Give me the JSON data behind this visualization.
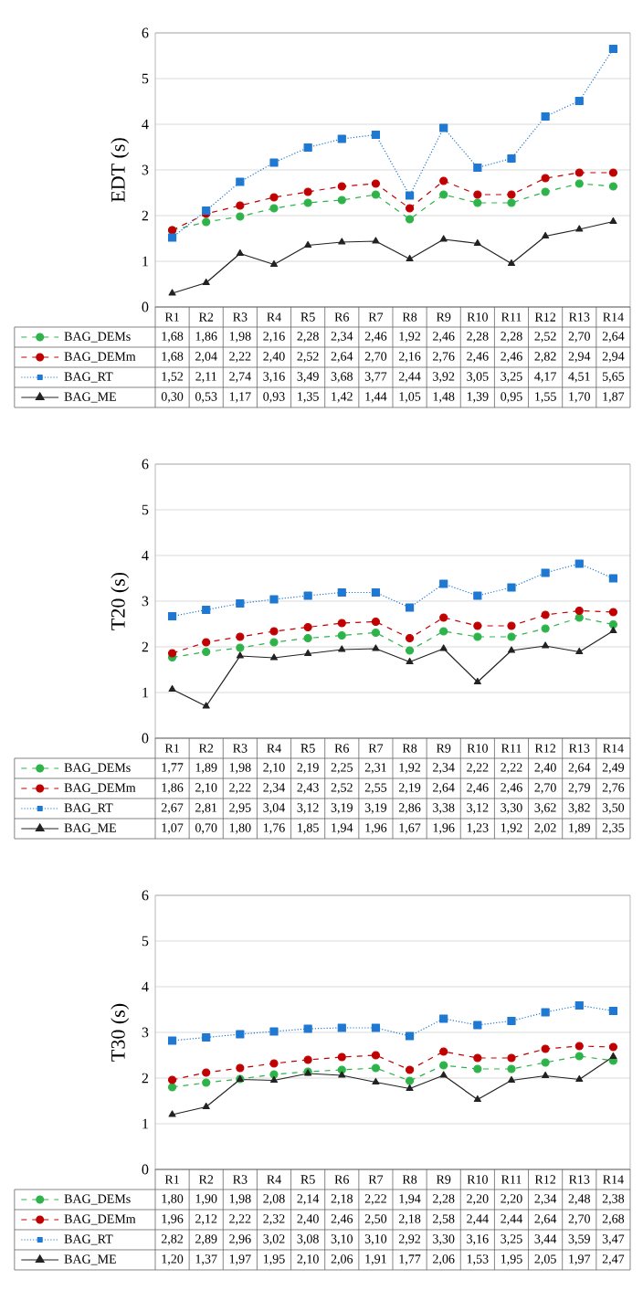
{
  "chart_data": [
    {
      "type": "line",
      "ylabel": "EDT (s)",
      "categories": [
        "R1",
        "R2",
        "R3",
        "R4",
        "R5",
        "R6",
        "R7",
        "R8",
        "R9",
        "R10",
        "R11",
        "R12",
        "R13",
        "R14"
      ],
      "ylim": [
        0,
        6
      ],
      "yticks": [
        0,
        1,
        2,
        3,
        4,
        5,
        6
      ],
      "grid": "y",
      "legend": "bottom",
      "series": [
        {
          "name": "BAG_DEMs",
          "color": "#2db34a",
          "marker": "circle",
          "line_style": "dashed",
          "values": [
            1.68,
            1.86,
            1.98,
            2.16,
            2.28,
            2.34,
            2.46,
            1.92,
            2.46,
            2.28,
            2.28,
            2.52,
            2.7,
            2.64
          ],
          "value_labels": [
            "1,68",
            "1,86",
            "1,98",
            "2,16",
            "2,28",
            "2,34",
            "2,46",
            "1,92",
            "2,46",
            "2,28",
            "2,28",
            "2,52",
            "2,70",
            "2,64"
          ]
        },
        {
          "name": "BAG_DEMm",
          "color": "#c00000",
          "marker": "circle",
          "line_style": "dashed",
          "values": [
            1.68,
            2.04,
            2.22,
            2.4,
            2.52,
            2.64,
            2.7,
            2.16,
            2.76,
            2.46,
            2.46,
            2.82,
            2.94,
            2.94
          ],
          "value_labels": [
            "1,68",
            "2,04",
            "2,22",
            "2,40",
            "2,52",
            "2,64",
            "2,70",
            "2,16",
            "2,76",
            "2,46",
            "2,46",
            "2,82",
            "2,94",
            "2,94"
          ]
        },
        {
          "name": "BAG_RT",
          "color": "#1f78d1",
          "marker": "square",
          "line_style": "dotted",
          "values": [
            1.52,
            2.11,
            2.74,
            3.16,
            3.49,
            3.68,
            3.77,
            2.44,
            3.92,
            3.05,
            3.25,
            4.17,
            4.51,
            5.65
          ],
          "value_labels": [
            "1,52",
            "2,11",
            "2,74",
            "3,16",
            "3,49",
            "3,68",
            "3,77",
            "2,44",
            "3,92",
            "3,05",
            "3,25",
            "4,17",
            "4,51",
            "5,65"
          ]
        },
        {
          "name": "BAG_ME",
          "color": "#222222",
          "marker": "triangle",
          "line_style": "solid",
          "values": [
            0.3,
            0.53,
            1.17,
            0.93,
            1.35,
            1.42,
            1.44,
            1.05,
            1.48,
            1.39,
            0.95,
            1.55,
            1.7,
            1.87
          ],
          "value_labels": [
            "0,30",
            "0,53",
            "1,17",
            "0,93",
            "1,35",
            "1,42",
            "1,44",
            "1,05",
            "1,48",
            "1,39",
            "0,95",
            "1,55",
            "1,70",
            "1,87"
          ]
        }
      ]
    },
    {
      "type": "line",
      "ylabel": "T20 (s)",
      "categories": [
        "R1",
        "R2",
        "R3",
        "R4",
        "R5",
        "R6",
        "R7",
        "R8",
        "R9",
        "R10",
        "R11",
        "R12",
        "R13",
        "R14"
      ],
      "ylim": [
        0,
        6
      ],
      "yticks": [
        0,
        1,
        2,
        3,
        4,
        5,
        6
      ],
      "grid": "y",
      "legend": "bottom",
      "series": [
        {
          "name": "BAG_DEMs",
          "color": "#2db34a",
          "marker": "circle",
          "line_style": "dashed",
          "values": [
            1.77,
            1.89,
            1.98,
            2.1,
            2.19,
            2.25,
            2.31,
            1.92,
            2.34,
            2.22,
            2.22,
            2.4,
            2.64,
            2.49
          ],
          "value_labels": [
            "1,77",
            "1,89",
            "1,98",
            "2,10",
            "2,19",
            "2,25",
            "2,31",
            "1,92",
            "2,34",
            "2,22",
            "2,22",
            "2,40",
            "2,64",
            "2,49"
          ]
        },
        {
          "name": "BAG_DEMm",
          "color": "#c00000",
          "marker": "circle",
          "line_style": "dashed",
          "values": [
            1.86,
            2.1,
            2.22,
            2.34,
            2.43,
            2.52,
            2.55,
            2.19,
            2.64,
            2.46,
            2.46,
            2.7,
            2.79,
            2.76
          ],
          "value_labels": [
            "1,86",
            "2,10",
            "2,22",
            "2,34",
            "2,43",
            "2,52",
            "2,55",
            "2,19",
            "2,64",
            "2,46",
            "2,46",
            "2,70",
            "2,79",
            "2,76"
          ]
        },
        {
          "name": "BAG_RT",
          "color": "#1f78d1",
          "marker": "square",
          "line_style": "dotted",
          "values": [
            2.67,
            2.81,
            2.95,
            3.04,
            3.12,
            3.19,
            3.19,
            2.86,
            3.38,
            3.12,
            3.3,
            3.62,
            3.82,
            3.5
          ],
          "value_labels": [
            "2,67",
            "2,81",
            "2,95",
            "3,04",
            "3,12",
            "3,19",
            "3,19",
            "2,86",
            "3,38",
            "3,12",
            "3,30",
            "3,62",
            "3,82",
            "3,50"
          ]
        },
        {
          "name": "BAG_ME",
          "color": "#222222",
          "marker": "triangle",
          "line_style": "solid",
          "values": [
            1.07,
            0.7,
            1.8,
            1.76,
            1.85,
            1.94,
            1.96,
            1.67,
            1.96,
            1.23,
            1.92,
            2.02,
            1.89,
            2.35
          ],
          "value_labels": [
            "1,07",
            "0,70",
            "1,80",
            "1,76",
            "1,85",
            "1,94",
            "1,96",
            "1,67",
            "1,96",
            "1,23",
            "1,92",
            "2,02",
            "1,89",
            "2,35"
          ]
        }
      ]
    },
    {
      "type": "line",
      "ylabel": "T30 (s)",
      "categories": [
        "R1",
        "R2",
        "R3",
        "R4",
        "R5",
        "R6",
        "R7",
        "R8",
        "R9",
        "R10",
        "R11",
        "R12",
        "R13",
        "R14"
      ],
      "ylim": [
        0,
        6
      ],
      "yticks": [
        0,
        1,
        2,
        3,
        4,
        5,
        6
      ],
      "grid": "y",
      "legend": "bottom",
      "series": [
        {
          "name": "BAG_DEMs",
          "color": "#2db34a",
          "marker": "circle",
          "line_style": "dashed",
          "values": [
            1.8,
            1.9,
            1.98,
            2.08,
            2.14,
            2.18,
            2.22,
            1.94,
            2.28,
            2.2,
            2.2,
            2.34,
            2.48,
            2.38
          ],
          "value_labels": [
            "1,80",
            "1,90",
            "1,98",
            "2,08",
            "2,14",
            "2,18",
            "2,22",
            "1,94",
            "2,28",
            "2,20",
            "2,20",
            "2,34",
            "2,48",
            "2,38"
          ]
        },
        {
          "name": "BAG_DEMm",
          "color": "#c00000",
          "marker": "circle",
          "line_style": "dashed",
          "values": [
            1.96,
            2.12,
            2.22,
            2.32,
            2.4,
            2.46,
            2.5,
            2.18,
            2.58,
            2.44,
            2.44,
            2.64,
            2.7,
            2.68
          ],
          "value_labels": [
            "1,96",
            "2,12",
            "2,22",
            "2,32",
            "2,40",
            "2,46",
            "2,50",
            "2,18",
            "2,58",
            "2,44",
            "2,44",
            "2,64",
            "2,70",
            "2,68"
          ]
        },
        {
          "name": "BAG_RT",
          "color": "#1f78d1",
          "marker": "square",
          "line_style": "dotted",
          "values": [
            2.82,
            2.89,
            2.96,
            3.02,
            3.08,
            3.1,
            3.1,
            2.92,
            3.3,
            3.16,
            3.25,
            3.44,
            3.59,
            3.47
          ],
          "value_labels": [
            "2,82",
            "2,89",
            "2,96",
            "3,02",
            "3,08",
            "3,10",
            "3,10",
            "2,92",
            "3,30",
            "3,16",
            "3,25",
            "3,44",
            "3,59",
            "3,47"
          ]
        },
        {
          "name": "BAG_ME",
          "color": "#222222",
          "marker": "triangle",
          "line_style": "solid",
          "values": [
            1.2,
            1.37,
            1.97,
            1.95,
            2.1,
            2.06,
            1.91,
            1.77,
            2.06,
            1.53,
            1.95,
            2.05,
            1.97,
            2.47
          ],
          "value_labels": [
            "1,20",
            "1,37",
            "1,97",
            "1,95",
            "2,10",
            "2,06",
            "1,91",
            "1,77",
            "2,06",
            "1,53",
            "1,95",
            "2,05",
            "1,97",
            "2,47"
          ]
        }
      ]
    }
  ]
}
